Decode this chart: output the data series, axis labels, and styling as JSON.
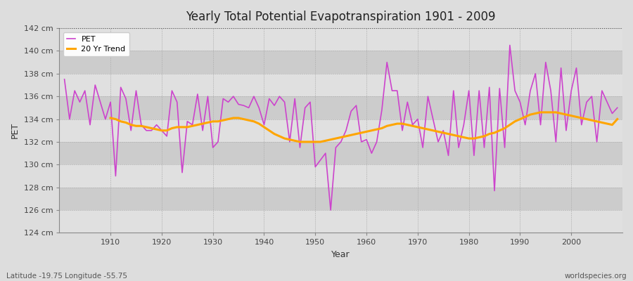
{
  "title": "Yearly Total Potential Evapotranspiration 1901 - 2009",
  "xlabel": "Year",
  "ylabel": "PET",
  "lat_lon_label": "Latitude -19.75 Longitude -55.75",
  "source_label": "worldspecies.org",
  "pet_line_color": "#cc44cc",
  "trend_line_color": "#ffa500",
  "fig_bg_color": "#dddddd",
  "plot_bg_color": "#cccccc",
  "band_color_light": "#e0e0e0",
  "band_color_dark": "#cccccc",
  "ylim": [
    124,
    142
  ],
  "xlim": [
    1900,
    2010
  ],
  "ytick_labels": [
    "124 cm",
    "126 cm",
    "128 cm",
    "130 cm",
    "132 cm",
    "134 cm",
    "136 cm",
    "138 cm",
    "140 cm",
    "142 cm"
  ],
  "ytick_values": [
    124,
    126,
    128,
    130,
    132,
    134,
    136,
    138,
    140,
    142
  ],
  "xtick_values": [
    1910,
    1920,
    1930,
    1940,
    1950,
    1960,
    1970,
    1980,
    1990,
    2000
  ],
  "years": [
    1901,
    1902,
    1903,
    1904,
    1905,
    1906,
    1907,
    1908,
    1909,
    1910,
    1911,
    1912,
    1913,
    1914,
    1915,
    1916,
    1917,
    1918,
    1919,
    1920,
    1921,
    1922,
    1923,
    1924,
    1925,
    1926,
    1927,
    1928,
    1929,
    1930,
    1931,
    1932,
    1933,
    1934,
    1935,
    1936,
    1937,
    1938,
    1939,
    1940,
    1941,
    1942,
    1943,
    1944,
    1945,
    1946,
    1947,
    1948,
    1949,
    1950,
    1951,
    1952,
    1953,
    1954,
    1955,
    1956,
    1957,
    1958,
    1959,
    1960,
    1961,
    1962,
    1963,
    1964,
    1965,
    1966,
    1967,
    1968,
    1969,
    1970,
    1971,
    1972,
    1973,
    1974,
    1975,
    1976,
    1977,
    1978,
    1979,
    1980,
    1981,
    1982,
    1983,
    1984,
    1985,
    1986,
    1987,
    1988,
    1989,
    1990,
    1991,
    1992,
    1993,
    1994,
    1995,
    1996,
    1997,
    1998,
    1999,
    2000,
    2001,
    2002,
    2003,
    2004,
    2005,
    2006,
    2007,
    2008,
    2009
  ],
  "pet_values": [
    137.5,
    134.0,
    136.5,
    135.5,
    136.5,
    133.5,
    137.0,
    135.5,
    134.0,
    135.5,
    129.0,
    136.8,
    135.8,
    133.0,
    136.5,
    133.5,
    133.0,
    133.0,
    133.5,
    133.0,
    132.5,
    136.5,
    135.5,
    129.3,
    133.8,
    133.5,
    136.2,
    133.0,
    136.0,
    131.5,
    132.0,
    135.8,
    135.5,
    136.0,
    135.3,
    135.2,
    135.0,
    136.0,
    135.0,
    133.5,
    135.8,
    135.2,
    136.0,
    135.5,
    132.0,
    135.8,
    131.5,
    135.0,
    135.5,
    129.8,
    130.4,
    131.0,
    126.0,
    131.5,
    132.0,
    133.0,
    134.7,
    135.2,
    132.0,
    132.2,
    131.0,
    132.0,
    134.8,
    139.0,
    136.5,
    136.5,
    133.0,
    135.5,
    133.5,
    134.0,
    131.5,
    136.0,
    134.0,
    132.0,
    133.0,
    130.8,
    136.5,
    131.5,
    133.5,
    136.5,
    130.8,
    136.5,
    131.5,
    136.8,
    127.7,
    136.7,
    131.5,
    140.5,
    136.5,
    135.5,
    133.5,
    136.5,
    138.0,
    133.5,
    139.0,
    136.5,
    132.0,
    138.5,
    133.0,
    136.5,
    138.5,
    133.5,
    135.5,
    136.0,
    132.0,
    136.5,
    135.5,
    134.5,
    135.0
  ],
  "trend_values": [
    null,
    null,
    null,
    null,
    null,
    null,
    null,
    null,
    null,
    134.1,
    134.0,
    133.8,
    133.7,
    133.5,
    133.4,
    133.4,
    133.3,
    133.2,
    133.1,
    133.0,
    133.0,
    133.2,
    133.3,
    133.3,
    133.3,
    133.4,
    133.5,
    133.6,
    133.7,
    133.8,
    133.8,
    133.9,
    134.0,
    134.1,
    134.1,
    134.0,
    133.9,
    133.8,
    133.6,
    133.3,
    133.0,
    132.7,
    132.5,
    132.3,
    132.2,
    132.1,
    132.0,
    132.0,
    132.0,
    132.0,
    132.0,
    132.1,
    132.2,
    132.3,
    132.4,
    132.5,
    132.6,
    132.7,
    132.8,
    132.9,
    133.0,
    133.1,
    133.2,
    133.4,
    133.5,
    133.6,
    133.6,
    133.5,
    133.4,
    133.3,
    133.2,
    133.1,
    133.0,
    132.9,
    132.8,
    132.7,
    132.6,
    132.5,
    132.4,
    132.3,
    132.3,
    132.4,
    132.5,
    132.7,
    132.8,
    133.0,
    133.2,
    133.5,
    133.8,
    134.0,
    134.2,
    134.4,
    134.5,
    134.6,
    134.6,
    134.6,
    134.6,
    134.5,
    134.4,
    134.3,
    134.2,
    134.1,
    134.0,
    133.9,
    133.8,
    133.7,
    133.6,
    133.5,
    134.0
  ]
}
